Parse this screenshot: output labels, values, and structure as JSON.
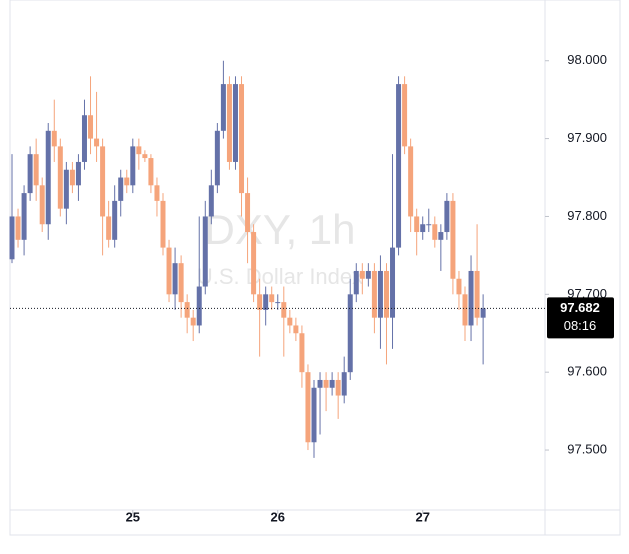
{
  "chart_data": {
    "type": "candlestick",
    "watermark_title": "DXY, 1h",
    "watermark_subtitle": "U.S. Dollar Index",
    "up_color": "#6471a8",
    "down_color": "#f5a47b",
    "open": [
      97.745,
      97.8,
      97.77,
      97.83,
      97.88,
      97.84,
      97.79,
      97.91,
      97.89,
      97.81,
      97.86,
      97.84,
      97.87,
      97.93,
      97.9,
      97.89,
      97.8,
      97.77,
      97.82,
      97.85,
      97.84,
      97.89,
      97.88,
      97.875,
      97.84,
      97.82,
      97.76,
      97.7,
      97.74,
      97.69,
      97.67,
      97.66,
      97.71,
      97.8,
      97.84,
      97.91,
      97.97,
      97.87,
      97.97,
      97.83,
      97.78,
      97.7,
      97.68,
      97.7,
      97.69,
      97.69,
      97.67,
      97.66,
      97.65,
      97.6,
      97.51,
      97.58,
      97.59,
      97.58,
      97.59,
      97.57,
      97.6,
      97.7,
      97.73,
      97.72,
      97.73,
      97.67,
      97.73,
      97.67,
      97.76,
      97.97,
      97.89,
      97.8,
      97.78,
      97.79,
      97.79,
      97.77,
      97.78,
      97.82,
      97.72,
      97.7,
      97.66,
      97.73,
      97.67
    ],
    "high": [
      97.88,
      97.81,
      97.84,
      97.89,
      97.9,
      97.85,
      97.92,
      97.95,
      97.9,
      97.87,
      97.87,
      97.88,
      97.95,
      97.98,
      97.96,
      97.9,
      97.82,
      97.84,
      97.86,
      97.86,
      97.9,
      97.9,
      97.885,
      97.88,
      97.85,
      97.83,
      97.77,
      97.76,
      97.75,
      97.7,
      97.68,
      97.8,
      97.82,
      97.86,
      97.92,
      98.0,
      97.98,
      97.98,
      97.98,
      97.85,
      97.79,
      97.72,
      97.71,
      97.71,
      97.7,
      97.71,
      97.68,
      97.67,
      97.66,
      97.61,
      97.59,
      97.6,
      97.6,
      97.6,
      97.6,
      97.62,
      97.72,
      97.74,
      97.74,
      97.74,
      97.74,
      97.75,
      97.74,
      97.88,
      97.98,
      97.98,
      97.9,
      97.81,
      97.8,
      97.81,
      97.8,
      97.79,
      97.83,
      97.83,
      97.73,
      97.71,
      97.75,
      97.79,
      97.7
    ],
    "low": [
      97.74,
      97.76,
      97.75,
      97.82,
      97.82,
      97.78,
      97.77,
      97.87,
      97.8,
      97.79,
      97.83,
      97.82,
      97.86,
      97.88,
      97.87,
      97.75,
      97.76,
      97.76,
      97.8,
      97.83,
      97.83,
      97.86,
      97.87,
      97.83,
      97.8,
      97.75,
      97.69,
      97.68,
      97.67,
      97.65,
      97.64,
      97.65,
      97.7,
      97.79,
      97.83,
      97.9,
      97.86,
      97.86,
      97.8,
      97.74,
      97.69,
      97.62,
      97.66,
      97.68,
      97.68,
      97.62,
      97.65,
      97.64,
      97.58,
      97.5,
      97.49,
      97.52,
      97.55,
      97.57,
      97.54,
      97.56,
      97.59,
      97.69,
      97.7,
      97.71,
      97.65,
      97.63,
      97.61,
      97.63,
      97.75,
      97.88,
      97.78,
      97.75,
      97.77,
      97.78,
      97.76,
      97.73,
      97.77,
      97.7,
      97.68,
      97.64,
      97.64,
      97.66,
      97.61
    ],
    "close": [
      97.8,
      97.77,
      97.83,
      97.88,
      97.84,
      97.79,
      97.91,
      97.89,
      97.81,
      97.86,
      97.84,
      97.87,
      97.93,
      97.9,
      97.89,
      97.8,
      97.77,
      97.82,
      97.85,
      97.84,
      97.89,
      97.88,
      97.875,
      97.84,
      97.82,
      97.76,
      97.7,
      97.74,
      97.69,
      97.67,
      97.66,
      97.71,
      97.8,
      97.84,
      97.91,
      97.97,
      97.87,
      97.97,
      97.83,
      97.78,
      97.7,
      97.68,
      97.7,
      97.69,
      97.69,
      97.67,
      97.66,
      97.65,
      97.6,
      97.51,
      97.58,
      97.59,
      97.58,
      97.59,
      97.57,
      97.6,
      97.7,
      97.73,
      97.72,
      97.73,
      97.67,
      97.73,
      97.67,
      97.76,
      97.97,
      97.89,
      97.8,
      97.78,
      97.79,
      97.79,
      97.77,
      97.78,
      97.82,
      97.72,
      97.7,
      97.66,
      97.73,
      97.67,
      97.682
    ],
    "xticks": [
      {
        "value": 20,
        "label": "25"
      },
      {
        "value": 44,
        "label": "26"
      },
      {
        "value": 68,
        "label": "27"
      }
    ],
    "ylim": [
      97.423,
      98.078
    ],
    "yticks": [
      {
        "value": 97.5,
        "label": "97.500"
      },
      {
        "value": 97.6,
        "label": "97.600"
      },
      {
        "value": 97.7,
        "label": "97.700"
      },
      {
        "value": 97.8,
        "label": "97.800"
      },
      {
        "value": 97.9,
        "label": "97.900"
      },
      {
        "value": 98.0,
        "label": "98.000"
      }
    ],
    "last_price": {
      "value": 97.682,
      "label": "97.682"
    },
    "countdown": "08:16"
  }
}
